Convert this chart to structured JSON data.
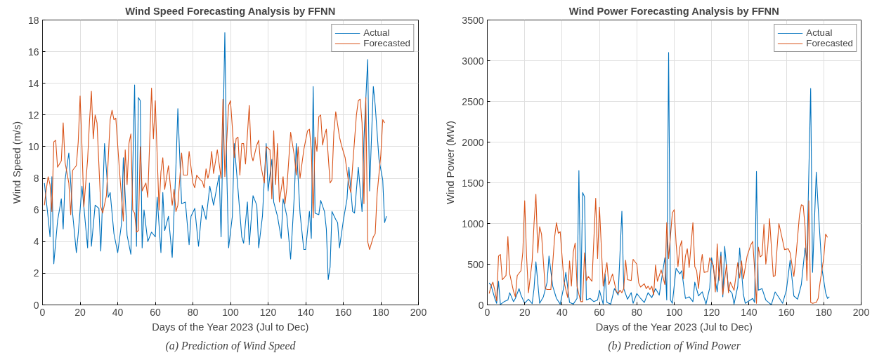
{
  "chart_data": [
    {
      "type": "line",
      "title": "Wind Speed Forecasting Analysis by FFNN",
      "xlabel": "Days of the Year 2023 (Jul to Dec)",
      "ylabel": "Wind Speed (m/s)",
      "annotations": [
        "(a) Prediction of Wind Speed"
      ],
      "xlim": [
        0,
        200
      ],
      "xticks": [
        0,
        20,
        40,
        60,
        80,
        100,
        120,
        140,
        160,
        180,
        200
      ],
      "ylim": [
        0,
        18
      ],
      "yticks": [
        0,
        2,
        4,
        6,
        8,
        10,
        12,
        14,
        16,
        18
      ],
      "grid": true,
      "legend": "top right",
      "series": [
        {
          "name": "Actual",
          "color": "#0072bd",
          "x": [
            1,
            3,
            4,
            5,
            6,
            8,
            10,
            11,
            12,
            14,
            16,
            18,
            19,
            21,
            22,
            24,
            25,
            26,
            28,
            30,
            31,
            33,
            35,
            36,
            38,
            40,
            42,
            43,
            45,
            47,
            49,
            50,
            51,
            52,
            53,
            54,
            56,
            58,
            60,
            61,
            63,
            64,
            65,
            67,
            69,
            71,
            72,
            74,
            76,
            78,
            79,
            81,
            83,
            85,
            87,
            89,
            91,
            93,
            94,
            95,
            97,
            98,
            99,
            101,
            102,
            104,
            106,
            107,
            109,
            110,
            112,
            114,
            115,
            117,
            119,
            120,
            122,
            123,
            125,
            127,
            128,
            130,
            132,
            134,
            135,
            137,
            139,
            140,
            142,
            143,
            144,
            145,
            147,
            148,
            150,
            151,
            152,
            153,
            154,
            156,
            157,
            158,
            160,
            162,
            163,
            165,
            166,
            168,
            170,
            171,
            173,
            174,
            176,
            177,
            179,
            181,
            182,
            183
          ],
          "values": [
            7.7,
            5.5,
            4.3,
            8.1,
            2.6,
            5.3,
            6.7,
            4.8,
            7.9,
            9.6,
            5.8,
            3.3,
            4.5,
            7.5,
            6.2,
            3.6,
            7.7,
            3.7,
            6.3,
            6.1,
            3.4,
            10.2,
            6.8,
            7.1,
            4.5,
            3.3,
            5.1,
            9.3,
            4.4,
            3.2,
            13.9,
            3.7,
            13.1,
            12.9,
            3.6,
            6.0,
            4.0,
            4.6,
            4.3,
            6.8,
            3.3,
            7.1,
            4.7,
            5.6,
            3.0,
            8.8,
            12.4,
            6.4,
            6.5,
            3.8,
            5.6,
            6.1,
            3.7,
            6.3,
            5.4,
            7.5,
            6.3,
            7.6,
            8.2,
            4.3,
            17.2,
            8.5,
            3.6,
            5.6,
            10.2,
            7.3,
            4.3,
            3.9,
            6.5,
            3.8,
            6.9,
            6.3,
            3.6,
            5.6,
            10.2,
            7.2,
            9.2,
            6.5,
            5.6,
            4.2,
            6.7,
            5.6,
            2.9,
            7.0,
            10.2,
            5.8,
            3.5,
            3.5,
            5.9,
            4.2,
            13.8,
            5.8,
            5.7,
            6.6,
            5.9,
            4.8,
            1.6,
            2.4,
            5.9,
            5.4,
            5.2,
            3.6,
            5.3,
            6.7,
            8.7,
            5.9,
            5.8,
            8.7,
            5.9,
            10.5,
            15.5,
            7.2,
            13.8,
            12.6,
            9.2,
            7.9,
            5.2,
            5.6
          ]
        },
        {
          "name": "Forecasted",
          "color": "#d95319",
          "x": [
            1,
            2,
            3,
            4,
            5,
            6,
            7,
            8,
            10,
            11,
            12,
            14,
            15,
            16,
            18,
            19,
            20,
            21,
            22,
            24,
            25,
            26,
            27,
            28,
            29,
            31,
            32,
            34,
            36,
            37,
            38,
            39,
            41,
            43,
            44,
            45,
            46,
            47,
            48,
            49,
            50,
            51,
            52,
            53,
            55,
            56,
            58,
            59,
            60,
            62,
            63,
            64,
            65,
            67,
            69,
            70,
            71,
            72,
            74,
            75,
            77,
            78,
            80,
            81,
            82,
            84,
            85,
            86,
            87,
            88,
            89,
            90,
            91,
            93,
            95,
            96,
            97,
            99,
            100,
            101,
            102,
            103,
            104,
            105,
            106,
            107,
            108,
            110,
            111,
            112,
            114,
            115,
            116,
            118,
            119,
            121,
            122,
            123,
            124,
            125,
            126,
            128,
            129,
            130,
            132,
            134,
            135,
            136,
            137,
            139,
            141,
            142,
            143,
            144,
            145,
            146,
            147,
            148,
            149,
            150,
            151,
            153,
            154,
            155,
            156,
            158,
            159,
            161,
            163,
            164,
            165,
            167,
            168,
            169,
            170,
            171,
            172,
            173,
            174,
            176,
            177,
            178,
            180,
            181,
            182
          ],
          "values": [
            6.3,
            7.3,
            8.1,
            7.6,
            5.9,
            10.3,
            10.4,
            8.7,
            9.1,
            11.5,
            9.0,
            7.7,
            5.7,
            8.5,
            8.8,
            10.3,
            13.2,
            10.0,
            6.2,
            9.2,
            11.6,
            13.5,
            10.5,
            12.0,
            11.5,
            6.2,
            5.8,
            6.9,
            11.7,
            12.3,
            11.7,
            11.8,
            8.4,
            5.3,
            9.8,
            7.6,
            10.2,
            10.8,
            6.0,
            5.8,
            4.6,
            4.7,
            10.0,
            7.2,
            7.7,
            6.8,
            13.7,
            10.5,
            12.9,
            6.0,
            8.4,
            9.3,
            7.3,
            8.8,
            6.3,
            7.3,
            5.9,
            6.3,
            9.6,
            8.2,
            8.2,
            9.7,
            7.7,
            7.4,
            8.2,
            7.9,
            7.8,
            7.4,
            8.6,
            8.0,
            8.5,
            9.7,
            8.3,
            9.8,
            8.0,
            13.0,
            8.1,
            12.6,
            12.9,
            11.2,
            9.3,
            10.5,
            10.6,
            8.2,
            10.2,
            10.2,
            8.9,
            12.6,
            9.5,
            9.1,
            10.1,
            10.4,
            8.9,
            7.7,
            10.0,
            9.8,
            6.7,
            11.0,
            7.6,
            10.2,
            6.5,
            8.1,
            6.4,
            7.4,
            10.9,
            9.4,
            8.2,
            10.0,
            8.0,
            9.8,
            11.0,
            11.1,
            9.8,
            5.5,
            10.6,
            9.7,
            11.9,
            12.0,
            10.1,
            10.7,
            11.1,
            7.7,
            7.9,
            10.9,
            12.2,
            10.6,
            10.1,
            9.3,
            7.6,
            7.1,
            8.8,
            12.0,
            12.9,
            13.0,
            11.5,
            6.4,
            13.1,
            4.0,
            3.5,
            4.3,
            4.5,
            7.0,
            9.5,
            11.7,
            11.5
          ]
        }
      ]
    },
    {
      "type": "line",
      "title": "Wind Power Forecasting Analysis by FFNN",
      "xlabel": "Days of the Year 2023 (Jul to Dec)",
      "ylabel": "Wind Power (MW)",
      "annotations": [
        "(b) Prediction of Wind Power"
      ],
      "xlim": [
        0,
        200
      ],
      "xticks": [
        0,
        20,
        40,
        60,
        80,
        100,
        120,
        140,
        160,
        180,
        200
      ],
      "ylim": [
        0,
        3500
      ],
      "yticks": [
        0,
        500,
        1000,
        1500,
        2000,
        2500,
        3000,
        3500
      ],
      "grid": true,
      "legend": "top right",
      "series": [
        {
          "name": "Actual",
          "color": "#0072bd",
          "x": [
            1,
            2,
            4,
            5,
            6,
            7,
            9,
            11,
            12,
            14,
            15,
            17,
            18,
            20,
            22,
            24,
            25,
            26,
            28,
            30,
            32,
            33,
            35,
            37,
            39,
            41,
            42,
            44,
            46,
            48,
            49,
            50,
            51,
            52,
            53,
            55,
            57,
            59,
            60,
            62,
            63,
            64,
            66,
            68,
            70,
            72,
            73,
            75,
            77,
            78,
            80,
            82,
            84,
            86,
            88,
            90,
            92,
            93,
            95,
            96,
            97,
            98,
            99,
            101,
            103,
            104,
            106,
            108,
            110,
            111,
            113,
            115,
            117,
            119,
            120,
            121,
            123,
            125,
            126,
            127,
            129,
            131,
            132,
            134,
            135,
            137,
            138,
            140,
            142,
            143,
            144,
            145,
            147,
            149,
            151,
            152,
            154,
            156,
            158,
            160,
            162,
            164,
            166,
            168,
            170,
            171,
            173,
            174,
            176,
            177,
            179,
            181,
            182,
            183
          ],
          "values": [
            270,
            240,
            80,
            20,
            290,
            5,
            40,
            60,
            150,
            40,
            80,
            200,
            120,
            20,
            70,
            15,
            200,
            530,
            20,
            100,
            280,
            600,
            230,
            80,
            10,
            230,
            400,
            30,
            10,
            80,
            1650,
            50,
            1380,
            1330,
            60,
            80,
            40,
            60,
            180,
            10,
            380,
            30,
            10,
            200,
            120,
            1150,
            200,
            70,
            150,
            20,
            140,
            80,
            30,
            150,
            90,
            200,
            120,
            280,
            580,
            60,
            3100,
            60,
            20,
            450,
            380,
            420,
            80,
            100,
            40,
            280,
            110,
            160,
            10,
            210,
            580,
            440,
            160,
            650,
            100,
            720,
            200,
            140,
            10,
            230,
            700,
            130,
            20,
            50,
            80,
            30,
            1640,
            180,
            200,
            60,
            20,
            5,
            160,
            90,
            20,
            180,
            550,
            110,
            70,
            250,
            700,
            550,
            2660,
            400,
            1630,
            1200,
            450,
            150,
            80,
            100
          ]
        },
        {
          "name": "Forecasted",
          "color": "#d95319",
          "x": [
            1,
            2,
            3,
            4,
            5,
            6,
            7,
            8,
            10,
            11,
            12,
            14,
            15,
            16,
            18,
            19,
            20,
            21,
            22,
            24,
            25,
            26,
            27,
            28,
            29,
            31,
            32,
            34,
            36,
            37,
            38,
            39,
            41,
            43,
            44,
            45,
            46,
            47,
            48,
            49,
            50,
            51,
            52,
            53,
            54,
            56,
            58,
            59,
            60,
            62,
            63,
            64,
            65,
            67,
            69,
            70,
            71,
            72,
            73,
            74,
            75,
            77,
            78,
            80,
            81,
            82,
            84,
            85,
            86,
            87,
            88,
            89,
            90,
            91,
            93,
            95,
            96,
            97,
            99,
            100,
            101,
            102,
            103,
            104,
            105,
            106,
            107,
            108,
            110,
            111,
            112,
            113,
            114,
            115,
            116,
            118,
            119,
            121,
            122,
            123,
            124,
            125,
            126,
            128,
            129,
            130,
            132,
            134,
            135,
            136,
            137,
            139,
            141,
            142,
            143,
            144,
            145,
            146,
            147,
            148,
            149,
            150,
            151,
            153,
            154,
            155,
            156,
            158,
            159,
            161,
            162,
            164,
            165,
            167,
            168,
            169,
            170,
            171,
            172,
            173,
            174,
            176,
            177,
            178,
            180,
            181,
            182
          ],
          "values": [
            140,
            230,
            280,
            180,
            50,
            600,
            620,
            310,
            360,
            840,
            380,
            170,
            100,
            360,
            420,
            650,
            1280,
            600,
            150,
            540,
            1000,
            1360,
            640,
            960,
            870,
            200,
            190,
            190,
            830,
            1010,
            880,
            900,
            290,
            90,
            540,
            230,
            650,
            760,
            230,
            130,
            40,
            40,
            640,
            300,
            350,
            290,
            1310,
            570,
            1200,
            230,
            390,
            520,
            250,
            380,
            170,
            140,
            180,
            150,
            200,
            550,
            310,
            300,
            560,
            500,
            270,
            220,
            260,
            200,
            230,
            190,
            230,
            120,
            490,
            290,
            430,
            250,
            1010,
            570,
            1130,
            1170,
            760,
            470,
            710,
            790,
            320,
            600,
            690,
            460,
            1010,
            470,
            420,
            200,
            460,
            620,
            400,
            410,
            580,
            480,
            160,
            750,
            300,
            600,
            130,
            500,
            150,
            280,
            180,
            520,
            330,
            540,
            320,
            600,
            740,
            780,
            440,
            20,
            710,
            590,
            610,
            990,
            500,
            690,
            1060,
            350,
            360,
            690,
            1000,
            790,
            680,
            690,
            640,
            350,
            560,
            1100,
            1230,
            1220,
            960,
            300,
            1280,
            30,
            20,
            30,
            80,
            270,
            580,
            870,
            830
          ]
        }
      ]
    }
  ]
}
